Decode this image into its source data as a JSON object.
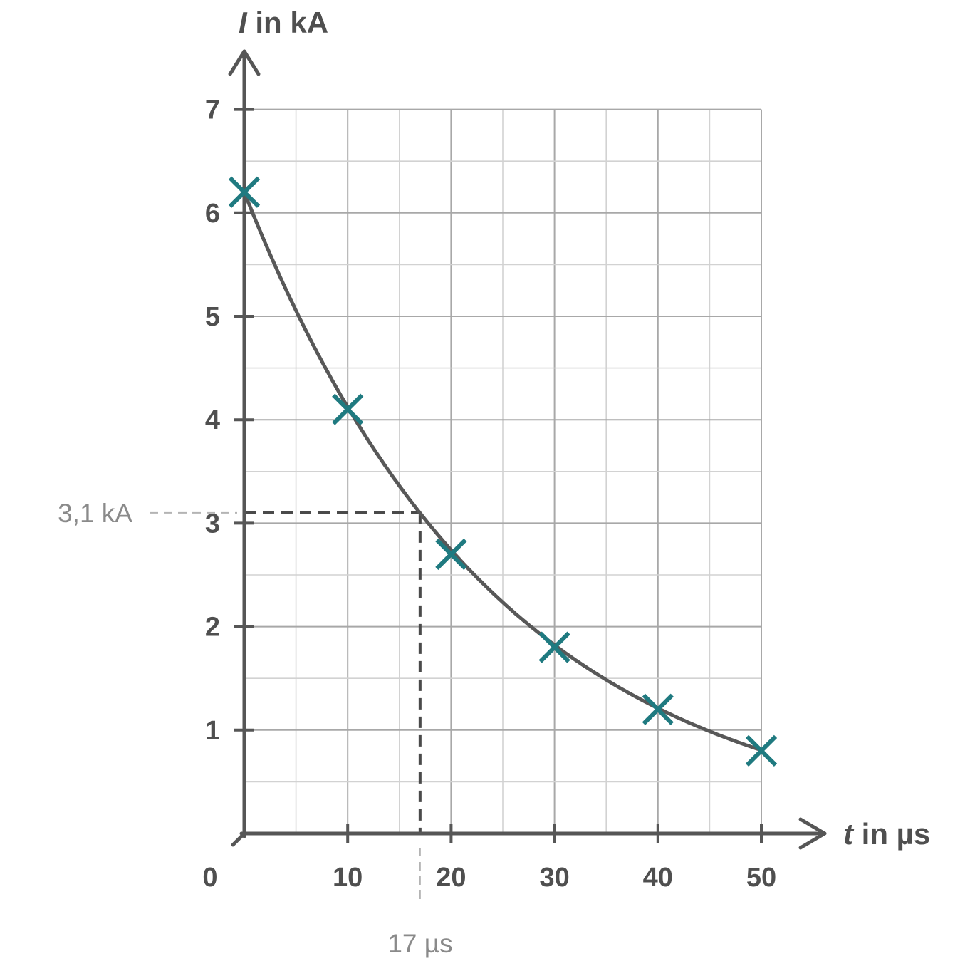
{
  "chart_data": {
    "type": "scatter",
    "xlabel": {
      "symbol": "t",
      "unit": " in µs"
    },
    "ylabel": {
      "symbol": "I",
      "unit": " in kA"
    },
    "xlim": [
      0,
      50
    ],
    "ylim": [
      0,
      7
    ],
    "x_ticks": [
      "0",
      "10",
      "20",
      "30",
      "40",
      "50"
    ],
    "y_ticks": [
      "1",
      "2",
      "3",
      "4",
      "5",
      "6",
      "7"
    ],
    "grid": true,
    "series": [
      {
        "x": [
          0,
          10,
          20,
          30,
          40,
          50
        ],
        "y": [
          6.2,
          4.1,
          2.7,
          1.8,
          1.2,
          0.8
        ]
      }
    ],
    "fit_curve": {
      "form": "exponential decay",
      "I0": 6.2,
      "tau": 24.5
    },
    "annotation": {
      "x": 17,
      "y": 3.1,
      "y_label": "3,1 kA",
      "x_label": "17 µs"
    },
    "colors": {
      "markers": "#1f7a80",
      "curve": "#585858",
      "axes": "#565656",
      "grid": "#a8a8a8"
    }
  }
}
